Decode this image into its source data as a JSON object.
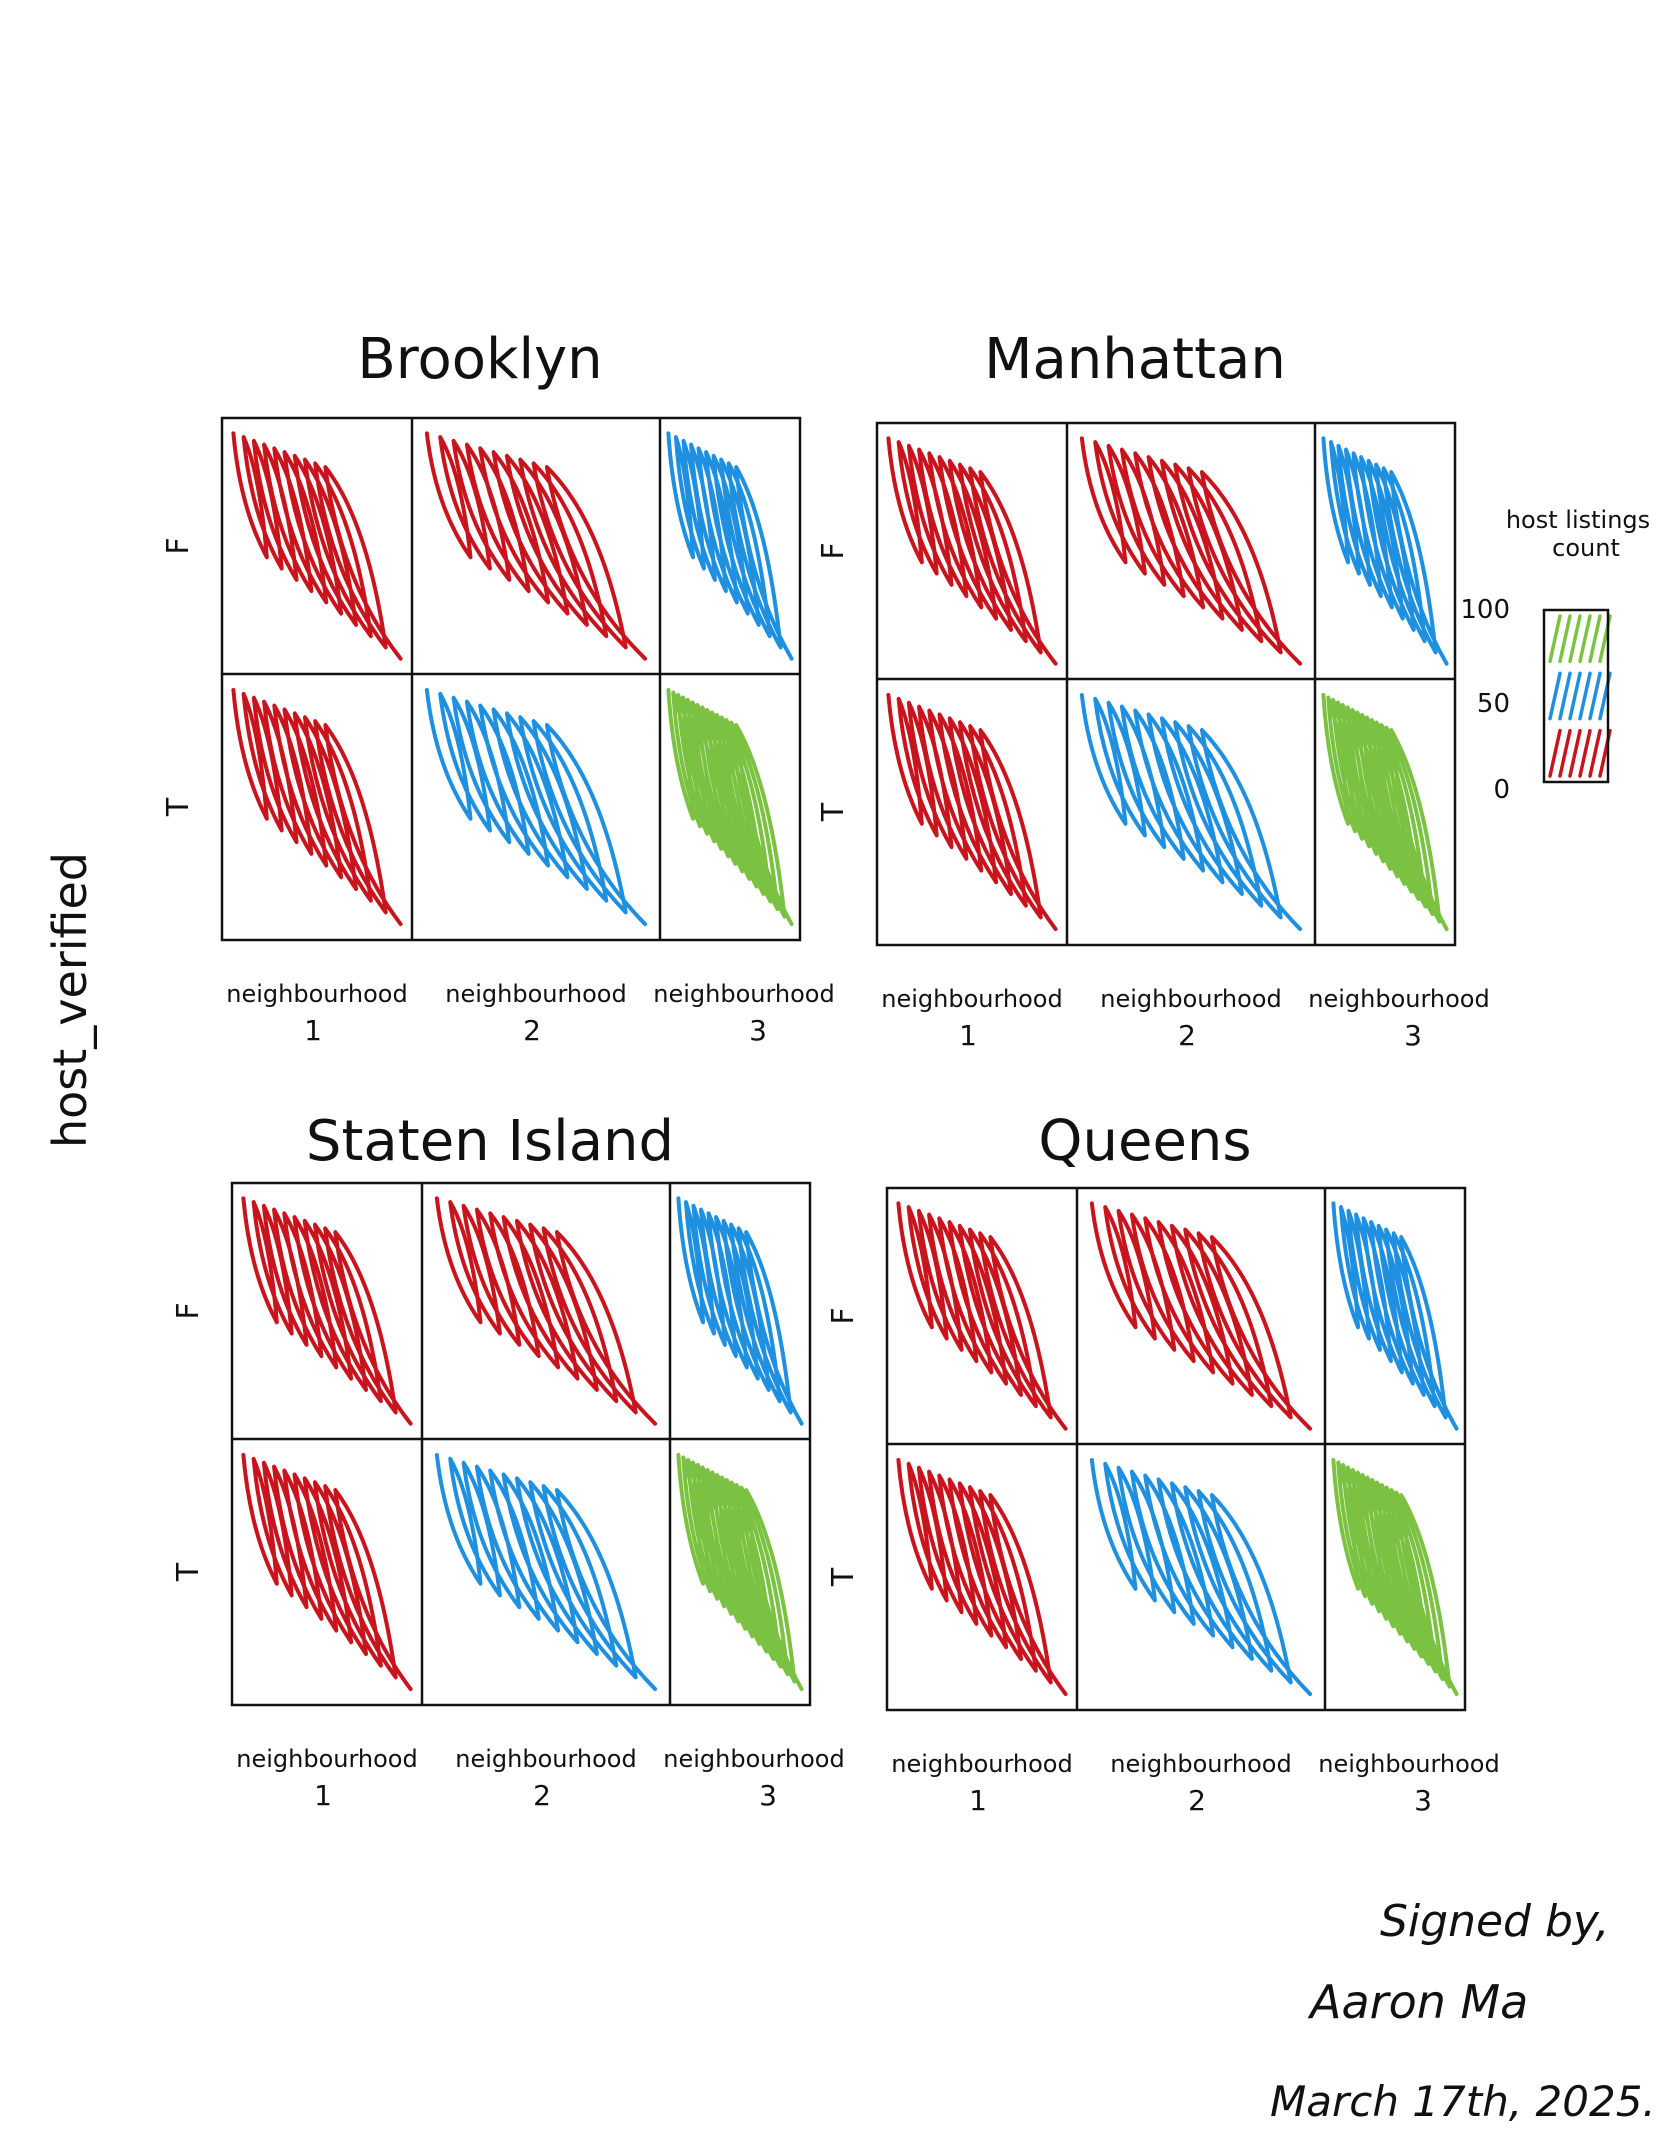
{
  "chart_data": {
    "type": "heatmap",
    "ylabel": "host_verified",
    "row_labels": [
      "F",
      "T"
    ],
    "column_labels": [
      {
        "line1": "neighbourhood",
        "line2": "1"
      },
      {
        "line1": "neighbourhood",
        "line2": "2"
      },
      {
        "line1": "neighbourhood",
        "line2": "3"
      }
    ],
    "legend": {
      "title_line1": "host listings",
      "title_line2": "count",
      "ticks": [
        "100",
        "50",
        "0"
      ],
      "ranges": [
        {
          "color": "red",
          "from": 0,
          "to": 33
        },
        {
          "color": "blue",
          "from": 33,
          "to": 66
        },
        {
          "color": "green",
          "from": 66,
          "to": 100
        }
      ],
      "placement": "right"
    },
    "panels": [
      {
        "title": "Brooklyn",
        "cells": [
          [
            "red",
            "red",
            "blue"
          ],
          [
            "red",
            "blue",
            "green"
          ]
        ]
      },
      {
        "title": "Manhattan",
        "cells": [
          [
            "red",
            "red",
            "blue"
          ],
          [
            "red",
            "blue",
            "green"
          ]
        ]
      },
      {
        "title": "Staten Island",
        "cells": [
          [
            "red",
            "red",
            "blue"
          ],
          [
            "red",
            "blue",
            "green"
          ]
        ]
      },
      {
        "title": "Queens",
        "cells": [
          [
            "red",
            "red",
            "blue"
          ],
          [
            "red",
            "blue",
            "green"
          ]
        ]
      }
    ]
  },
  "colors": {
    "red": "#c8141c",
    "blue": "#1f8fe0",
    "green": "#7cc242",
    "ink": "#111111"
  },
  "signature": {
    "line1": "Signed by,",
    "line2": "Aaron Ma",
    "line3": "March 17th, 2025."
  }
}
